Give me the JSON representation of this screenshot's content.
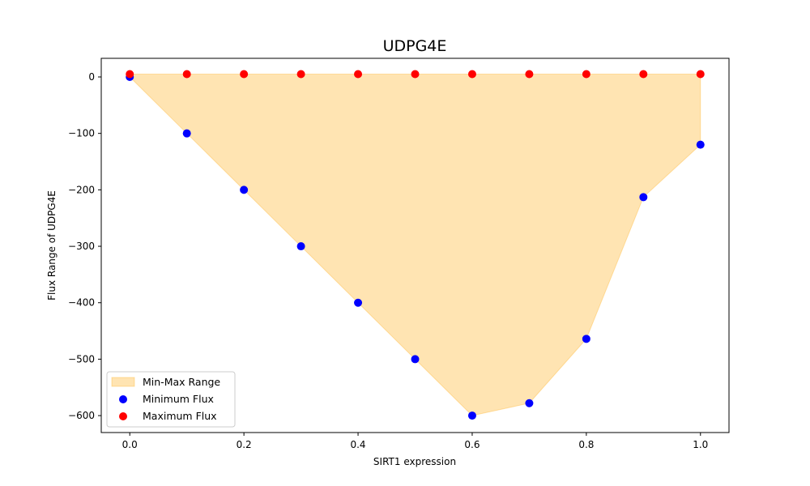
{
  "chart_data": {
    "type": "scatter",
    "title": "UDPG4E",
    "xlabel": "SIRT1 expression",
    "ylabel": "Flux Range of UDPG4E",
    "xlim": [
      -0.05,
      1.05
    ],
    "ylim": [
      -630,
      33
    ],
    "x_ticks": [
      0.0,
      0.2,
      0.4,
      0.6,
      0.8,
      1.0
    ],
    "y_ticks": [
      0,
      -100,
      -200,
      -300,
      -400,
      -500,
      -600
    ],
    "x": [
      0.0,
      0.1,
      0.2,
      0.3,
      0.4,
      0.5,
      0.6,
      0.7,
      0.8,
      0.9,
      1.0
    ],
    "series": [
      {
        "name": "Minimum Flux",
        "color": "#0000ff",
        "marker": "circle",
        "values": [
          0,
          -100,
          -200,
          -300,
          -400,
          -500,
          -600,
          -578,
          -464,
          -213,
          -120
        ]
      },
      {
        "name": "Maximum Flux",
        "color": "#ff0000",
        "marker": "circle",
        "values": [
          5,
          5,
          5,
          5,
          5,
          5,
          5,
          5,
          5,
          5,
          5
        ]
      }
    ],
    "fill_between": {
      "name": "Min-Max Range",
      "color": "#ffa500",
      "opacity": 0.3,
      "lower_series": "Minimum Flux",
      "upper_series": "Maximum Flux"
    },
    "legend": {
      "placement": "lower-left",
      "entries": [
        "Min-Max Range",
        "Minimum Flux",
        "Maximum Flux"
      ]
    },
    "grid": false
  }
}
